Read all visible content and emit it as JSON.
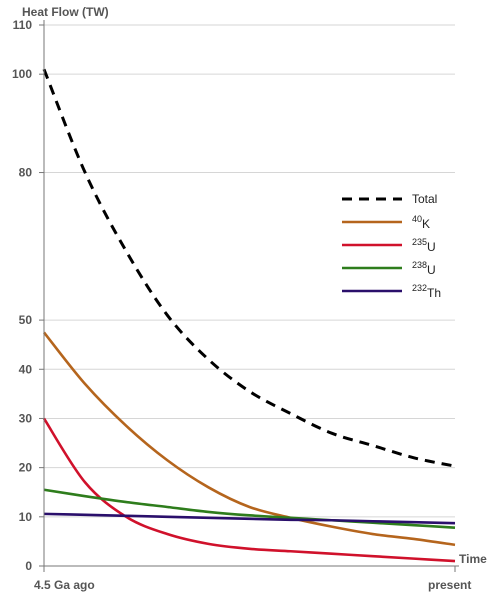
{
  "chart_data": {
    "type": "line",
    "ylabel": "Heat Flow (TW)",
    "xlabel": "Time",
    "x_tick_labels": [
      "4.5 Ga ago",
      "present"
    ],
    "x": [
      0,
      0.1,
      0.2,
      0.3,
      0.4,
      0.5,
      0.6,
      0.7,
      0.8,
      0.9,
      1.0
    ],
    "y_ticks": [
      0,
      10,
      20,
      30,
      40,
      50,
      80,
      100,
      110
    ],
    "ylim": [
      0,
      110
    ],
    "grid": true,
    "legend_position": "right",
    "series": [
      {
        "name": "Total",
        "isotope_mass": "",
        "isotope_symbol": "Total",
        "color": "#000000",
        "dashed": true,
        "values": [
          101,
          80,
          64,
          51,
          42,
          35.5,
          31,
          27,
          24.5,
          22,
          20.3
        ]
      },
      {
        "name": "40K",
        "isotope_mass": "40",
        "isotope_symbol": "K",
        "color": "#b5651d",
        "dashed": false,
        "values": [
          47.5,
          37,
          28.5,
          21.5,
          16,
          12,
          9.8,
          8,
          6.5,
          5.5,
          4.3
        ]
      },
      {
        "name": "235U",
        "isotope_mass": "235",
        "isotope_symbol": "U",
        "color": "#d0112b",
        "dashed": false,
        "values": [
          30,
          17,
          10,
          6.5,
          4.5,
          3.5,
          3,
          2.5,
          2,
          1.5,
          1
        ]
      },
      {
        "name": "238U",
        "isotope_mass": "238",
        "isotope_symbol": "U",
        "color": "#2e7d1c",
        "dashed": false,
        "values": [
          15.5,
          14.2,
          13,
          12,
          11,
          10.3,
          9.8,
          9.3,
          8.8,
          8.3,
          7.8
        ]
      },
      {
        "name": "232Th",
        "isotope_mass": "232",
        "isotope_symbol": "Th",
        "color": "#2a0f6b",
        "dashed": false,
        "values": [
          10.6,
          10.4,
          10.2,
          10,
          9.8,
          9.6,
          9.4,
          9.3,
          9.1,
          8.9,
          8.7
        ]
      }
    ]
  }
}
